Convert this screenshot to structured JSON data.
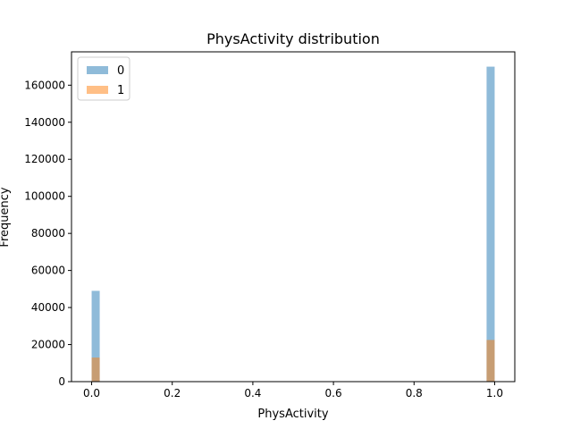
{
  "chart_data": {
    "type": "histogram",
    "title": "PhysActivity distribution",
    "xlabel": "PhysActivity",
    "ylabel": "Frequency",
    "xlim": [
      -0.05,
      1.05
    ],
    "ylim": [
      0,
      178000
    ],
    "xticks": [
      0.0,
      0.2,
      0.4,
      0.6,
      0.8,
      1.0
    ],
    "xtick_labels": [
      "0.0",
      "0.2",
      "0.4",
      "0.6",
      "0.8",
      "1.0"
    ],
    "yticks": [
      0,
      20000,
      40000,
      60000,
      80000,
      100000,
      120000,
      140000,
      160000
    ],
    "ytick_labels": [
      "0",
      "20000",
      "40000",
      "60000",
      "80000",
      "100000",
      "120000",
      "140000",
      "160000"
    ],
    "bin_width": 0.02,
    "legend_position": "top-left",
    "series": [
      {
        "name": "0",
        "color": "#1f77b4",
        "alpha": 0.5,
        "bins": [
          {
            "x0": 0.0,
            "x1": 0.02,
            "value": 49000
          },
          {
            "x0": 0.98,
            "x1": 1.0,
            "value": 170000
          }
        ]
      },
      {
        "name": "1",
        "color": "#ff7f0e",
        "alpha": 0.5,
        "bins": [
          {
            "x0": 0.0,
            "x1": 0.02,
            "value": 13000
          },
          {
            "x0": 0.98,
            "x1": 1.0,
            "value": 22500
          }
        ]
      }
    ]
  }
}
